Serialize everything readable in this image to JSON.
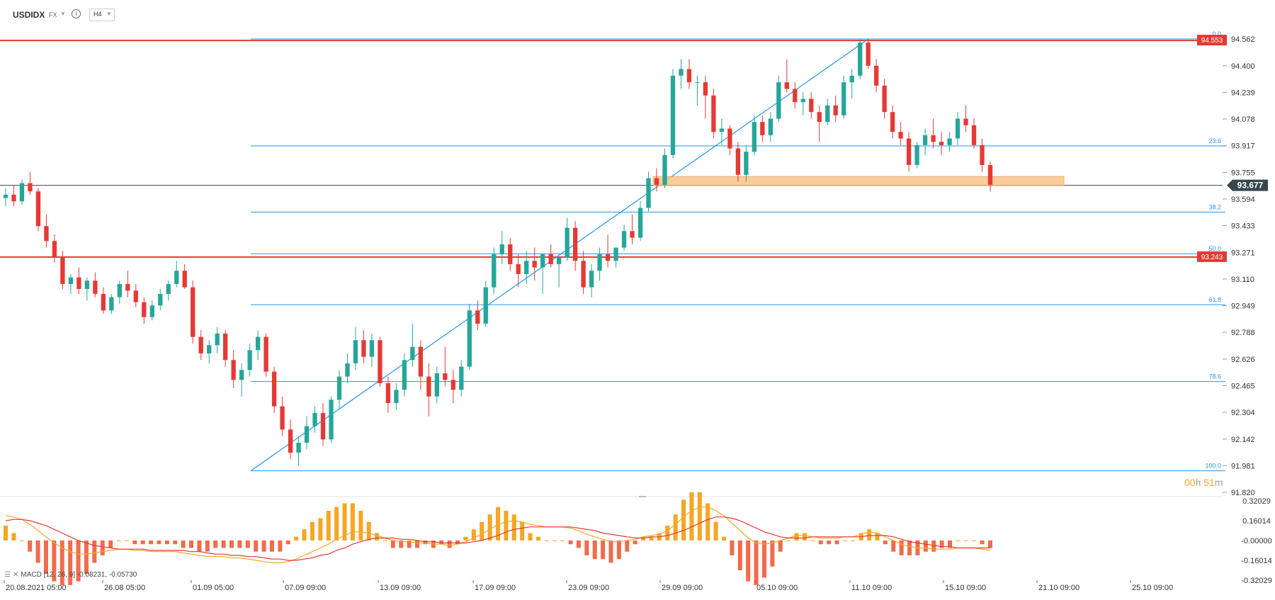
{
  "header": {
    "symbol": "USDIDX",
    "market": "FX",
    "timeframe": "H4"
  },
  "macd_label": "MACD [12, 26, 9] -0.08231, -0.05730",
  "countdown": {
    "hours": "00",
    "h": "h",
    "minutes": "51",
    "m": "m"
  },
  "chart_data": {
    "type": "candlestick",
    "symbol": "USDIDX",
    "timeframe": "H4",
    "price_axis": {
      "ticks": [
        "94.562",
        "94.400",
        "94.239",
        "94.078",
        "93.917",
        "93.755",
        "93.594",
        "93.433",
        "93.271",
        "93.110",
        "92.949",
        "92.788",
        "92.626",
        "92.465",
        "92.304",
        "92.142",
        "91.981",
        "91.820"
      ],
      "range": [
        91.82,
        94.562
      ]
    },
    "time_axis": [
      "20.08.2021  05:00",
      "26.08  05:00",
      "01.09  05:00",
      "07.09  09:00",
      "13.09  09:00",
      "17.09  09:00",
      "23.09  09:00",
      "29.09  09:00",
      "05.10  09:00",
      "11.10  09:00",
      "15.10  09:00",
      "21.10  09:00",
      "25.10  09:00"
    ],
    "current_price": {
      "label": "93.677",
      "value": 93.677
    },
    "horizontal_levels": [
      {
        "label": "94.553",
        "value": 94.553,
        "color": "#e53935"
      },
      {
        "label": "93.243",
        "value": 93.243,
        "color": "#e53935"
      }
    ],
    "fibonacci": {
      "color": "#2196f3",
      "levels": [
        {
          "label": "0.0",
          "value": 94.562
        },
        {
          "label": "23.6",
          "value": 93.915
        },
        {
          "label": "38.2",
          "value": 93.515
        },
        {
          "label": "50.0",
          "value": 93.263
        },
        {
          "label": "61.8",
          "value": 92.955
        },
        {
          "label": "78.6",
          "value": 92.49
        },
        {
          "label": "100.0",
          "value": 91.95
        }
      ]
    },
    "support_zone": {
      "top": 93.73,
      "bottom": 93.675,
      "color": "#f7c48a"
    },
    "candles": [
      [
        93.6,
        93.66,
        93.55,
        93.62
      ],
      [
        93.62,
        93.68,
        93.55,
        93.58
      ],
      [
        93.58,
        93.71,
        93.56,
        93.69
      ],
      [
        93.69,
        93.76,
        93.62,
        93.64
      ],
      [
        93.64,
        93.66,
        93.4,
        93.43
      ],
      [
        93.43,
        93.5,
        93.3,
        93.34
      ],
      [
        93.34,
        93.38,
        93.21,
        93.24
      ],
      [
        93.24,
        93.28,
        93.05,
        93.08
      ],
      [
        93.08,
        93.14,
        93.02,
        93.12
      ],
      [
        93.12,
        93.18,
        93.02,
        93.05
      ],
      [
        93.05,
        93.12,
        92.98,
        93.1
      ],
      [
        93.1,
        93.15,
        93.0,
        93.02
      ],
      [
        93.02,
        93.06,
        92.9,
        92.92
      ],
      [
        92.92,
        93.02,
        92.9,
        93.0
      ],
      [
        93.0,
        93.1,
        92.96,
        93.08
      ],
      [
        93.08,
        93.16,
        93.0,
        93.04
      ],
      [
        93.04,
        93.08,
        92.94,
        92.97
      ],
      [
        92.97,
        93.0,
        92.84,
        92.88
      ],
      [
        92.88,
        92.98,
        92.86,
        92.95
      ],
      [
        92.95,
        93.05,
        92.92,
        93.02
      ],
      [
        93.02,
        93.1,
        92.98,
        93.08
      ],
      [
        93.08,
        93.22,
        93.06,
        93.16
      ],
      [
        93.16,
        93.2,
        93.05,
        93.06
      ],
      [
        93.06,
        93.1,
        92.72,
        92.76
      ],
      [
        92.76,
        92.8,
        92.62,
        92.66
      ],
      [
        92.66,
        92.74,
        92.6,
        92.71
      ],
      [
        92.71,
        92.82,
        92.66,
        92.78
      ],
      [
        92.78,
        92.8,
        92.58,
        92.62
      ],
      [
        92.62,
        92.68,
        92.45,
        92.5
      ],
      [
        92.5,
        92.6,
        92.4,
        92.56
      ],
      [
        92.56,
        92.72,
        92.52,
        92.68
      ],
      [
        92.68,
        92.8,
        92.62,
        92.76
      ],
      [
        92.76,
        92.78,
        92.52,
        92.55
      ],
      [
        92.55,
        92.58,
        92.3,
        92.34
      ],
      [
        92.34,
        92.4,
        92.16,
        92.2
      ],
      [
        92.2,
        92.26,
        92.02,
        92.06
      ],
      [
        92.06,
        92.16,
        91.98,
        92.12
      ],
      [
        92.12,
        92.28,
        92.08,
        92.22
      ],
      [
        92.22,
        92.34,
        92.18,
        92.3
      ],
      [
        92.3,
        92.36,
        92.1,
        92.14
      ],
      [
        92.14,
        92.4,
        92.12,
        92.38
      ],
      [
        92.38,
        92.56,
        92.32,
        92.52
      ],
      [
        92.52,
        92.66,
        92.48,
        92.6
      ],
      [
        92.6,
        92.82,
        92.56,
        92.74
      ],
      [
        92.74,
        92.8,
        92.6,
        92.64
      ],
      [
        92.64,
        92.78,
        92.58,
        92.74
      ],
      [
        92.74,
        92.76,
        92.46,
        92.48
      ],
      [
        92.48,
        92.52,
        92.3,
        92.36
      ],
      [
        92.36,
        92.48,
        92.32,
        92.44
      ],
      [
        92.44,
        92.66,
        92.4,
        92.62
      ],
      [
        92.62,
        92.84,
        92.58,
        92.7
      ],
      [
        92.7,
        92.74,
        92.44,
        92.52
      ],
      [
        92.52,
        92.6,
        92.28,
        92.4
      ],
      [
        92.4,
        92.58,
        92.36,
        92.54
      ],
      [
        92.54,
        92.7,
        92.46,
        92.5
      ],
      [
        92.5,
        92.56,
        92.36,
        92.44
      ],
      [
        92.44,
        92.62,
        92.4,
        92.58
      ],
      [
        92.58,
        92.96,
        92.56,
        92.92
      ],
      [
        92.92,
        92.98,
        92.8,
        92.84
      ],
      [
        92.84,
        93.1,
        92.82,
        93.06
      ],
      [
        93.06,
        93.3,
        93.02,
        93.26
      ],
      [
        93.26,
        93.4,
        93.2,
        93.32
      ],
      [
        93.32,
        93.36,
        93.16,
        93.2
      ],
      [
        93.2,
        93.26,
        93.06,
        93.14
      ],
      [
        93.14,
        93.28,
        93.08,
        93.22
      ],
      [
        93.22,
        93.3,
        93.1,
        93.18
      ],
      [
        93.18,
        93.24,
        93.02,
        93.26
      ],
      [
        93.26,
        93.32,
        93.18,
        93.2
      ],
      [
        93.2,
        93.24,
        93.06,
        93.24
      ],
      [
        93.24,
        93.48,
        93.22,
        93.42
      ],
      [
        93.42,
        93.46,
        93.16,
        93.22
      ],
      [
        93.22,
        93.28,
        93.02,
        93.06
      ],
      [
        93.06,
        93.2,
        93.0,
        93.16
      ],
      [
        93.16,
        93.3,
        93.1,
        93.26
      ],
      [
        93.26,
        93.38,
        93.18,
        93.22
      ],
      [
        93.22,
        93.3,
        93.18,
        93.3
      ],
      [
        93.3,
        93.44,
        93.28,
        93.4
      ],
      [
        93.4,
        93.5,
        93.32,
        93.36
      ],
      [
        93.36,
        93.58,
        93.34,
        93.54
      ],
      [
        93.54,
        93.76,
        93.52,
        93.72
      ],
      [
        93.72,
        93.78,
        93.64,
        93.68
      ],
      [
        93.68,
        93.9,
        93.66,
        93.86
      ],
      [
        93.86,
        94.38,
        93.84,
        94.34
      ],
      [
        94.34,
        94.44,
        94.26,
        94.38
      ],
      [
        94.38,
        94.44,
        94.26,
        94.3
      ],
      [
        94.3,
        94.34,
        94.16,
        94.3
      ],
      [
        94.3,
        94.34,
        94.08,
        94.22
      ],
      [
        94.22,
        94.26,
        93.96,
        94.0
      ],
      [
        94.0,
        94.08,
        93.92,
        94.02
      ],
      [
        94.02,
        94.04,
        93.86,
        93.9
      ],
      [
        93.9,
        93.94,
        93.7,
        93.74
      ],
      [
        93.74,
        93.92,
        93.7,
        93.88
      ],
      [
        93.88,
        94.1,
        93.86,
        94.06
      ],
      [
        94.06,
        94.1,
        93.94,
        93.98
      ],
      [
        93.98,
        94.12,
        93.94,
        94.08
      ],
      [
        94.08,
        94.34,
        94.06,
        94.3
      ],
      [
        94.3,
        94.44,
        94.24,
        94.26
      ],
      [
        94.26,
        94.3,
        94.14,
        94.18
      ],
      [
        94.18,
        94.24,
        94.1,
        94.2
      ],
      [
        94.2,
        94.24,
        94.08,
        94.12
      ],
      [
        94.12,
        94.16,
        93.94,
        94.06
      ],
      [
        94.06,
        94.2,
        94.04,
        94.16
      ],
      [
        94.16,
        94.22,
        94.06,
        94.1
      ],
      [
        94.1,
        94.34,
        94.08,
        94.3
      ],
      [
        94.3,
        94.38,
        94.2,
        94.34
      ],
      [
        94.34,
        94.56,
        94.32,
        94.54
      ],
      [
        94.54,
        94.56,
        94.38,
        94.4
      ],
      [
        94.4,
        94.44,
        94.24,
        94.28
      ],
      [
        94.28,
        94.32,
        94.08,
        94.12
      ],
      [
        94.12,
        94.16,
        93.96,
        94.0
      ],
      [
        94.0,
        94.06,
        93.92,
        93.96
      ],
      [
        93.96,
        94.0,
        93.76,
        93.8
      ],
      [
        93.8,
        93.94,
        93.78,
        93.92
      ],
      [
        93.92,
        94.02,
        93.86,
        93.98
      ],
      [
        93.98,
        94.08,
        93.9,
        93.94
      ],
      [
        93.94,
        94.0,
        93.86,
        93.92
      ],
      [
        93.92,
        94.0,
        93.88,
        93.96
      ],
      [
        93.96,
        94.12,
        93.92,
        94.08
      ],
      [
        94.08,
        94.16,
        94.0,
        94.04
      ],
      [
        94.04,
        94.08,
        93.9,
        93.92
      ],
      [
        93.92,
        93.96,
        93.76,
        93.8
      ],
      [
        93.8,
        93.82,
        93.64,
        93.68
      ]
    ],
    "macd": {
      "value": -0.08231,
      "signal": -0.0573,
      "axis_ticks": [
        "0.32029",
        "0.16014",
        "-0.00000",
        "-0.16014",
        "-0.32029"
      ],
      "histogram_color": "#f5a623",
      "histogram_neg_color": "#ef6c4c",
      "macd_line": [
        0.2,
        0.19,
        0.17,
        0.13,
        0.08,
        0.03,
        -0.02,
        -0.06,
        -0.09,
        -0.11,
        -0.11,
        -0.1,
        -0.09,
        -0.08,
        -0.07,
        -0.07,
        -0.08,
        -0.08,
        -0.09,
        -0.09,
        -0.09,
        -0.09,
        -0.1,
        -0.11,
        -0.12,
        -0.13,
        -0.13,
        -0.13,
        -0.14,
        -0.14,
        -0.15,
        -0.16,
        -0.17,
        -0.18,
        -0.18,
        -0.17,
        -0.15,
        -0.12,
        -0.09,
        -0.06,
        -0.03,
        0.01,
        0.04,
        0.07,
        0.07,
        0.06,
        0.04,
        0.02,
        0.0,
        -0.01,
        -0.01,
        -0.02,
        -0.02,
        -0.03,
        -0.03,
        -0.04,
        -0.03,
        -0.01,
        0.02,
        0.05,
        0.09,
        0.13,
        0.15,
        0.16,
        0.15,
        0.13,
        0.12,
        0.11,
        0.11,
        0.11,
        0.1,
        0.08,
        0.05,
        0.03,
        0.01,
        -0.01,
        -0.01,
        0.0,
        0.01,
        0.03,
        0.04,
        0.05,
        0.08,
        0.13,
        0.19,
        0.24,
        0.27,
        0.27,
        0.24,
        0.2,
        0.14,
        0.08,
        0.02,
        -0.02,
        -0.03,
        -0.02,
        0.0,
        0.02,
        0.04,
        0.04,
        0.03,
        0.02,
        0.02,
        0.02,
        0.03,
        0.03,
        0.05,
        0.07,
        0.06,
        0.03,
        0.0,
        -0.03,
        -0.05,
        -0.06,
        -0.06,
        -0.07,
        -0.07,
        -0.07,
        -0.06,
        -0.06,
        -0.06,
        -0.07,
        -0.08
      ],
      "signal_line": [
        0.16,
        0.17,
        0.17,
        0.16,
        0.14,
        0.12,
        0.09,
        0.06,
        0.03,
        0.0,
        -0.02,
        -0.04,
        -0.05,
        -0.06,
        -0.07,
        -0.07,
        -0.07,
        -0.07,
        -0.08,
        -0.08,
        -0.08,
        -0.08,
        -0.08,
        -0.09,
        -0.09,
        -0.1,
        -0.11,
        -0.11,
        -0.12,
        -0.12,
        -0.13,
        -0.13,
        -0.14,
        -0.15,
        -0.15,
        -0.16,
        -0.16,
        -0.15,
        -0.14,
        -0.12,
        -0.11,
        -0.08,
        -0.06,
        -0.03,
        -0.01,
        0.01,
        0.02,
        0.02,
        0.02,
        0.01,
        0.01,
        0.0,
        -0.01,
        -0.01,
        -0.02,
        -0.02,
        -0.02,
        -0.02,
        -0.01,
        0.0,
        0.02,
        0.04,
        0.07,
        0.09,
        0.1,
        0.11,
        0.11,
        0.11,
        0.11,
        0.11,
        0.11,
        0.1,
        0.09,
        0.08,
        0.06,
        0.05,
        0.04,
        0.03,
        0.02,
        0.02,
        0.03,
        0.03,
        0.04,
        0.06,
        0.08,
        0.11,
        0.14,
        0.17,
        0.19,
        0.19,
        0.18,
        0.16,
        0.13,
        0.1,
        0.07,
        0.05,
        0.03,
        0.02,
        0.02,
        0.02,
        0.03,
        0.03,
        0.03,
        0.03,
        0.03,
        0.03,
        0.03,
        0.04,
        0.04,
        0.04,
        0.03,
        0.01,
        -0.01,
        -0.02,
        -0.03,
        -0.04,
        -0.05,
        -0.05,
        -0.06,
        -0.06,
        -0.06,
        -0.06,
        -0.06
      ]
    }
  }
}
